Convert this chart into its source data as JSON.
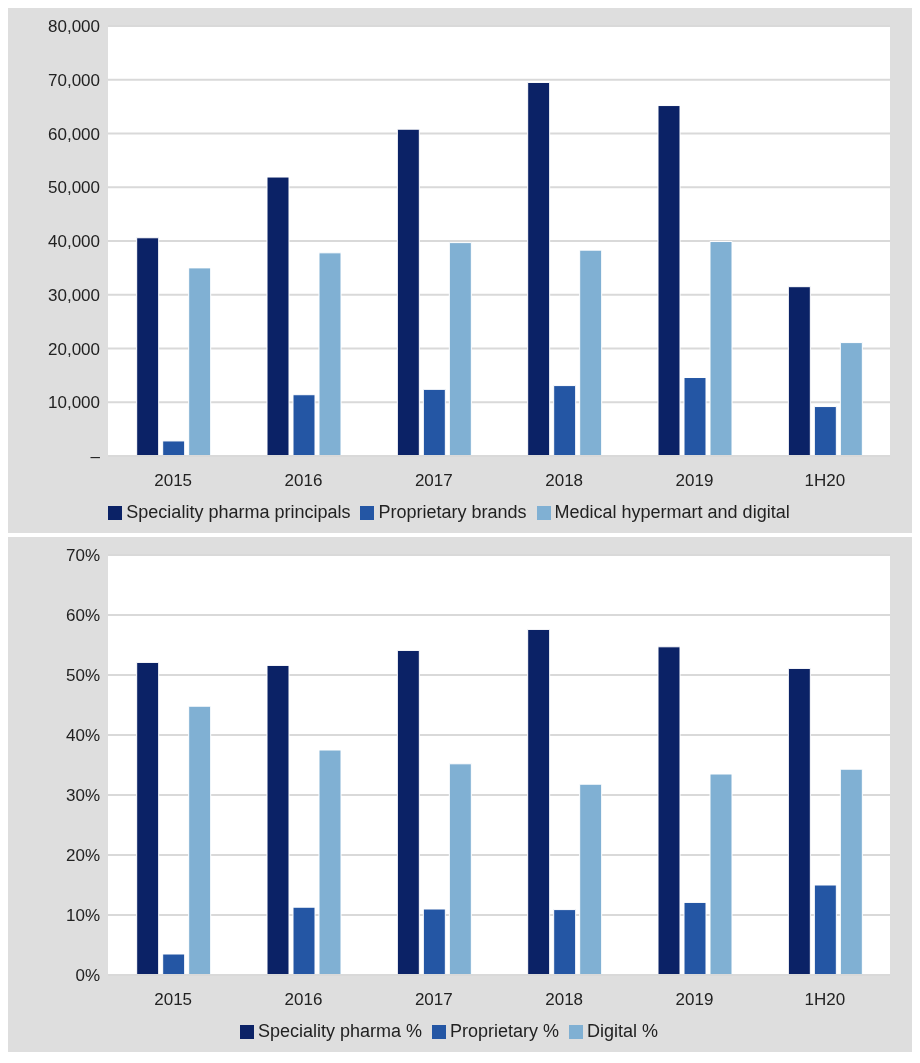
{
  "chart_data": [
    {
      "type": "bar",
      "categories": [
        "2015",
        "2016",
        "2017",
        "2018",
        "2019",
        "1H20"
      ],
      "series": [
        {
          "name": "Speciality pharma principals",
          "color": "#0b2266",
          "values": [
            40600,
            51900,
            60800,
            69500,
            65200,
            31500
          ]
        },
        {
          "name": "Proprietary brands",
          "color": "#2456a4",
          "values": [
            2800,
            11400,
            12400,
            13100,
            14600,
            9200
          ]
        },
        {
          "name": "Medical hypermart and digital",
          "color": "#80b0d3",
          "values": [
            35000,
            37800,
            39700,
            38300,
            39900,
            21100
          ]
        }
      ],
      "ylim": [
        0,
        80000
      ],
      "yticks": [
        {
          "value": 0,
          "label": "–"
        },
        {
          "value": 10000,
          "label": "10,000"
        },
        {
          "value": 20000,
          "label": "20,000"
        },
        {
          "value": 30000,
          "label": "30,000"
        },
        {
          "value": 40000,
          "label": "40,000"
        },
        {
          "value": 50000,
          "label": "50,000"
        },
        {
          "value": 60000,
          "label": "60,000"
        },
        {
          "value": 70000,
          "label": "70,000"
        },
        {
          "value": 80000,
          "label": "80,000"
        }
      ],
      "grid": "y",
      "legend": "bottom"
    },
    {
      "type": "bar",
      "categories": [
        "2015",
        "2016",
        "2017",
        "2018",
        "2019",
        "1H20"
      ],
      "series": [
        {
          "name": "Speciality pharma %",
          "color": "#0b2266",
          "values": [
            52.1,
            51.6,
            54.1,
            57.6,
            54.7,
            51.1
          ]
        },
        {
          "name": "Proprietary %",
          "color": "#2456a4",
          "values": [
            3.5,
            11.3,
            11.0,
            10.9,
            12.1,
            15.0
          ]
        },
        {
          "name": "Digital %",
          "color": "#80b0d3",
          "values": [
            44.8,
            37.5,
            35.2,
            31.8,
            33.5,
            34.3
          ]
        }
      ],
      "ylim": [
        0,
        70
      ],
      "yticks": [
        {
          "value": 0,
          "label": "0%"
        },
        {
          "value": 10,
          "label": "10%"
        },
        {
          "value": 20,
          "label": "20%"
        },
        {
          "value": 30,
          "label": "30%"
        },
        {
          "value": 40,
          "label": "40%"
        },
        {
          "value": 50,
          "label": "50%"
        },
        {
          "value": 60,
          "label": "60%"
        },
        {
          "value": 70,
          "label": "70%"
        }
      ],
      "grid": "y",
      "legend": "bottom"
    }
  ]
}
